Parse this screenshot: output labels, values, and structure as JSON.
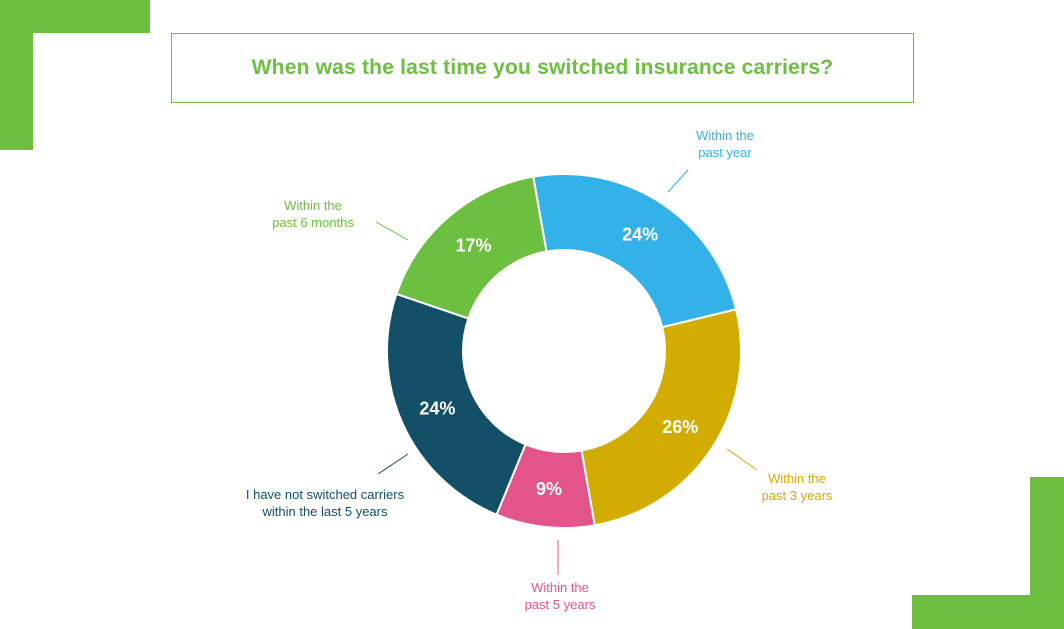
{
  "title": "When was the last time you switched insurance carriers?",
  "colors": {
    "accent": "#6cbf3f"
  },
  "chart_data": {
    "type": "pie",
    "subtype": "donut",
    "title": "When was the last time you switched insurance carriers?",
    "slices": [
      {
        "label": "Within the past year",
        "lines": [
          "Within the",
          "past year"
        ],
        "value": 24,
        "value_label": "24%",
        "color": "#33b2ea"
      },
      {
        "label": "Within the past 3 years",
        "lines": [
          "Within the",
          "past 3 years"
        ],
        "value": 26,
        "value_label": "26%",
        "color": "#d3ac00"
      },
      {
        "label": "Within the past 5 years",
        "lines": [
          "Within the",
          "past 5 years"
        ],
        "value": 9,
        "value_label": "9%",
        "color": "#e3558a"
      },
      {
        "label": "I have not switched carriers within the last 5 years",
        "lines": [
          "I have not switched carriers",
          "within the last 5 years"
        ],
        "value": 24,
        "value_label": "24%",
        "color": "#134f66"
      },
      {
        "label": "Within the past 6 months",
        "lines": [
          "Within the",
          "past 6 months"
        ],
        "value": 17,
        "value_label": "17%",
        "color": "#6cbf3f"
      }
    ]
  }
}
